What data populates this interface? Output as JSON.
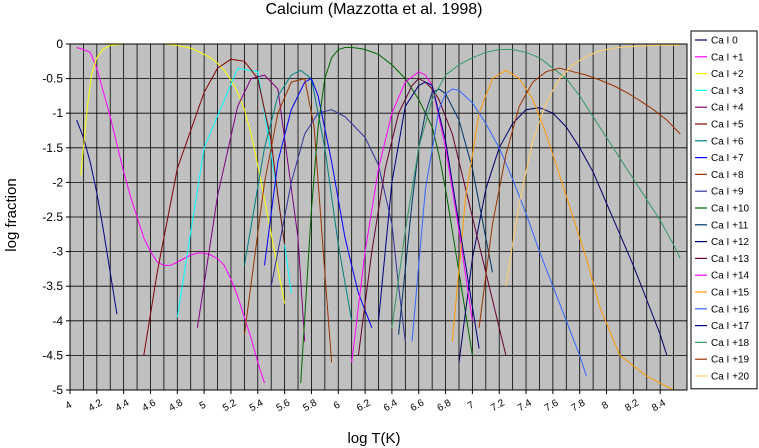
{
  "chart_data": {
    "type": "line",
    "title": "Calcium  (Mazzotta et al. 1998)",
    "xlabel": "log T(K)",
    "ylabel": "log fraction",
    "xlim": [
      4,
      8.6
    ],
    "ylim": [
      -5,
      0
    ],
    "x_ticks": [
      "4",
      "4.2",
      "4.4",
      "4.6",
      "4.8",
      "5",
      "5.2",
      "5.4",
      "5.6",
      "5.8",
      "6",
      "6.2",
      "6.4",
      "6.6",
      "6.8",
      "7",
      "7.2",
      "7.4",
      "7.6",
      "7.8",
      "8",
      "8.2",
      "8.4"
    ],
    "y_ticks": [
      "0",
      "-0.5",
      "-1",
      "-1.5",
      "-2",
      "-2.5",
      "-3",
      "-3.5",
      "-4",
      "-4.5",
      "-5"
    ],
    "grid": true,
    "background": "#c0c0c0",
    "legend_position": "right",
    "series": [
      {
        "name": "Ca I  0",
        "color": "#000080",
        "x": [
          4.05,
          4.1,
          4.15,
          4.2,
          4.25,
          4.3,
          4.35
        ],
        "y": [
          -1.1,
          -1.35,
          -1.7,
          -2.15,
          -2.7,
          -3.3,
          -3.9
        ]
      },
      {
        "name": "Ca I +1",
        "color": "#ff00ff",
        "x": [
          4.05,
          4.1,
          4.15,
          4.2,
          4.25,
          4.3,
          4.35,
          4.4,
          4.45,
          4.5,
          4.55,
          4.6,
          4.65,
          4.7,
          4.75,
          4.8,
          4.85,
          4.9,
          4.95,
          5.0,
          5.05,
          5.1,
          5.15,
          5.2,
          5.25,
          5.3,
          5.35,
          5.4,
          5.45
        ],
        "y": [
          -0.05,
          -0.08,
          -0.12,
          -0.35,
          -0.7,
          -1.05,
          -1.45,
          -1.85,
          -2.2,
          -2.5,
          -2.8,
          -3.0,
          -3.15,
          -3.2,
          -3.2,
          -3.15,
          -3.1,
          -3.05,
          -3.02,
          -3.02,
          -3.05,
          -3.1,
          -3.2,
          -3.4,
          -3.65,
          -3.95,
          -4.25,
          -4.6,
          -4.9
        ]
      },
      {
        "name": "Ca I +2",
        "color": "#ffff00",
        "x": [
          4.08,
          4.1,
          4.13,
          4.16,
          4.2,
          4.25,
          4.3,
          4.4,
          4.5,
          4.6,
          4.7,
          4.8,
          4.85,
          4.9,
          4.95,
          5.0,
          5.05,
          5.1,
          5.15,
          5.2,
          5.25,
          5.3,
          5.35,
          5.4,
          5.45,
          5.5,
          5.55,
          5.6
        ],
        "y": [
          -1.9,
          -1.5,
          -0.9,
          -0.45,
          -0.2,
          -0.07,
          -0.02,
          0,
          0,
          0,
          0,
          -0.02,
          -0.04,
          -0.06,
          -0.1,
          -0.15,
          -0.2,
          -0.28,
          -0.38,
          -0.52,
          -0.7,
          -0.95,
          -1.3,
          -1.75,
          -2.25,
          -2.75,
          -3.25,
          -3.75
        ]
      },
      {
        "name": "Ca I +3",
        "color": "#00ffff",
        "x": [
          4.8,
          5.0,
          5.25,
          5.4,
          5.55,
          5.65
        ],
        "y": [
          -3.95,
          -1.5,
          -0.35,
          -0.4,
          -2.2,
          -3.6
        ]
      },
      {
        "name": "Ca I +4",
        "color": "#800080",
        "x": [
          4.95,
          5.1,
          5.25,
          5.35,
          5.45,
          5.55,
          5.7,
          5.75
        ],
        "y": [
          -4.1,
          -2.2,
          -0.9,
          -0.5,
          -0.45,
          -0.65,
          -2.8,
          -4.3
        ]
      },
      {
        "name": "Ca I +5",
        "color": "#800000",
        "x": [
          4.55,
          4.65,
          4.8,
          5.0,
          5.1,
          5.2,
          5.3,
          5.4,
          5.5,
          5.55,
          5.6
        ],
        "y": [
          -4.5,
          -3.3,
          -1.8,
          -0.7,
          -0.35,
          -0.22,
          -0.25,
          -0.5,
          -1.4,
          -2.2,
          -2.9
        ]
      },
      {
        "name": "Ca I +6",
        "color": "#008080",
        "x": [
          5.3,
          5.45,
          5.55,
          5.65,
          5.72,
          5.8,
          5.9,
          6.0,
          6.1
        ],
        "y": [
          -3.2,
          -1.5,
          -0.75,
          -0.45,
          -0.38,
          -0.5,
          -1.5,
          -2.9,
          -4.0
        ]
      },
      {
        "name": "Ca I +7",
        "color": "#0000ff",
        "x": [
          5.45,
          5.55,
          5.65,
          5.75,
          5.8,
          5.85,
          5.95,
          6.05,
          6.15,
          6.25
        ],
        "y": [
          -3.2,
          -1.7,
          -0.95,
          -0.55,
          -0.5,
          -0.75,
          -1.7,
          -2.8,
          -3.6,
          -4.1
        ]
      },
      {
        "name": "Ca I +8",
        "color": "#993300",
        "x": [
          5.3,
          5.45,
          5.55,
          5.65,
          5.75,
          5.82,
          5.9,
          5.95
        ],
        "y": [
          -4.2,
          -2.0,
          -1.0,
          -0.55,
          -0.5,
          -1.2,
          -3.3,
          -4.6
        ]
      },
      {
        "name": "Ca I +9",
        "color": "#333399",
        "x": [
          5.5,
          5.65,
          5.75,
          5.85,
          5.95,
          6.05,
          6.2,
          6.3,
          6.4,
          6.45,
          6.5
        ],
        "y": [
          -3.5,
          -2.0,
          -1.3,
          -1.0,
          -0.95,
          -1.05,
          -1.35,
          -1.75,
          -2.6,
          -3.5,
          -4.3
        ]
      },
      {
        "name": "Ca I +10",
        "color": "#006600",
        "x": [
          5.72,
          5.8,
          5.85,
          5.9,
          5.95,
          6.0,
          6.05,
          6.1,
          6.15,
          6.2,
          6.3,
          6.4,
          6.5,
          6.6,
          6.7,
          6.75,
          6.8,
          6.85,
          6.9,
          6.95,
          7.0
        ],
        "y": [
          -4.9,
          -2.4,
          -1.2,
          -0.5,
          -0.2,
          -0.08,
          -0.05,
          -0.05,
          -0.06,
          -0.08,
          -0.15,
          -0.3,
          -0.5,
          -0.8,
          -1.2,
          -1.6,
          -2.1,
          -2.7,
          -3.3,
          -3.9,
          -4.5
        ]
      },
      {
        "name": "Ca I +11",
        "color": "#003366",
        "x": [
          6.45,
          6.55,
          6.6,
          6.65,
          6.7,
          6.75,
          6.8,
          6.9,
          7.0,
          7.1,
          7.15
        ],
        "y": [
          -4.2,
          -2.3,
          -1.5,
          -1.0,
          -0.7,
          -0.65,
          -0.72,
          -1.1,
          -1.8,
          -2.8,
          -3.3
        ]
      },
      {
        "name": "Ca I +12",
        "color": "#000066",
        "x": [
          6.9,
          7.0,
          7.1,
          7.2,
          7.3,
          7.4,
          7.5,
          7.6,
          7.7,
          7.8,
          7.9,
          8.0,
          8.1,
          8.2,
          8.3,
          8.4,
          8.45
        ],
        "y": [
          -4.6,
          -3.1,
          -2.1,
          -1.5,
          -1.15,
          -0.95,
          -0.92,
          -1.0,
          -1.2,
          -1.5,
          -1.85,
          -2.3,
          -2.75,
          -3.2,
          -3.7,
          -4.2,
          -4.5
        ]
      },
      {
        "name": "Ca I +13",
        "color": "#660033",
        "x": [
          6.15,
          6.25,
          6.35,
          6.45,
          6.55,
          6.6,
          6.65,
          6.7,
          6.75,
          6.85,
          6.95,
          7.05,
          7.15,
          7.25
        ],
        "y": [
          -4.5,
          -3.0,
          -1.8,
          -1.0,
          -0.6,
          -0.5,
          -0.55,
          -0.65,
          -0.8,
          -1.3,
          -2.1,
          -2.9,
          -3.7,
          -4.5
        ]
      },
      {
        "name": "Ca I +14",
        "color": "#ff00ff",
        "x": [
          6.1,
          6.2,
          6.3,
          6.4,
          6.5,
          6.6,
          6.65,
          6.7,
          6.8,
          6.9,
          7.0
        ],
        "y": [
          -4.6,
          -3.0,
          -1.8,
          -1.0,
          -0.55,
          -0.4,
          -0.45,
          -0.6,
          -1.5,
          -2.7,
          -4.0
        ]
      },
      {
        "name": "Ca I +15",
        "color": "#ff9900",
        "x": [
          6.85,
          6.95,
          7.05,
          7.15,
          7.25,
          7.35,
          7.45,
          7.55,
          7.65,
          7.75,
          7.85,
          7.95,
          8.1,
          8.3,
          8.5,
          8.6
        ],
        "y": [
          -4.3,
          -2.2,
          -1.0,
          -0.5,
          -0.38,
          -0.5,
          -0.8,
          -1.3,
          -1.9,
          -2.5,
          -3.1,
          -3.8,
          -4.5,
          -4.8,
          -5.0,
          -5.0
        ]
      },
      {
        "name": "Ca I +16",
        "color": "#3366ff",
        "x": [
          6.55,
          6.65,
          6.75,
          6.8,
          6.85,
          6.9,
          7.0,
          7.1,
          7.2,
          7.3,
          7.4,
          7.5,
          7.6,
          7.7,
          7.8,
          7.85
        ],
        "y": [
          -4.3,
          -2.1,
          -0.95,
          -0.72,
          -0.65,
          -0.67,
          -0.85,
          -1.15,
          -1.5,
          -1.95,
          -2.45,
          -3.0,
          -3.5,
          -4.0,
          -4.5,
          -4.8
        ]
      },
      {
        "name": "Ca I +17",
        "color": "#000080",
        "x": [
          6.3,
          6.4,
          6.5,
          6.6,
          6.65,
          6.7,
          6.8,
          6.9,
          7.0,
          7.05
        ],
        "y": [
          -4.0,
          -2.0,
          -0.9,
          -0.6,
          -0.55,
          -0.6,
          -1.4,
          -2.6,
          -3.8,
          -4.4
        ]
      },
      {
        "name": "Ca I +18",
        "color": "#339966",
        "x": [
          6.4,
          6.5,
          6.6,
          6.7,
          6.8,
          6.9,
          7.0,
          7.1,
          7.2,
          7.3,
          7.4,
          7.5,
          7.6,
          7.7,
          7.8,
          7.9,
          8.0,
          8.1,
          8.2,
          8.3,
          8.4,
          8.5,
          8.55
        ],
        "y": [
          -4.1,
          -2.7,
          -1.5,
          -0.8,
          -0.45,
          -0.3,
          -0.2,
          -0.12,
          -0.08,
          -0.08,
          -0.12,
          -0.2,
          -0.35,
          -0.5,
          -0.75,
          -1.05,
          -1.35,
          -1.65,
          -1.95,
          -2.25,
          -2.55,
          -2.9,
          -3.1
        ]
      },
      {
        "name": "Ca I +19",
        "color": "#993300",
        "x": [
          7.05,
          7.15,
          7.25,
          7.35,
          7.45,
          7.55,
          7.65,
          7.75,
          7.85,
          7.95,
          8.05,
          8.15,
          8.25,
          8.35,
          8.45,
          8.55
        ],
        "y": [
          -4.1,
          -2.6,
          -1.6,
          -0.9,
          -0.55,
          -0.4,
          -0.35,
          -0.4,
          -0.45,
          -0.52,
          -0.6,
          -0.7,
          -0.82,
          -0.95,
          -1.1,
          -1.3
        ]
      },
      {
        "name": "Ca I +20",
        "color": "#ffcc66",
        "x": [
          7.25,
          7.35,
          7.45,
          7.55,
          7.65,
          7.75,
          7.85,
          7.95,
          8.05,
          8.15,
          8.25,
          8.35,
          8.45,
          8.55
        ],
        "y": [
          -3.5,
          -2.3,
          -1.4,
          -0.85,
          -0.5,
          -0.3,
          -0.18,
          -0.1,
          -0.06,
          -0.04,
          -0.03,
          -0.02,
          -0.02,
          -0.02
        ]
      }
    ]
  }
}
